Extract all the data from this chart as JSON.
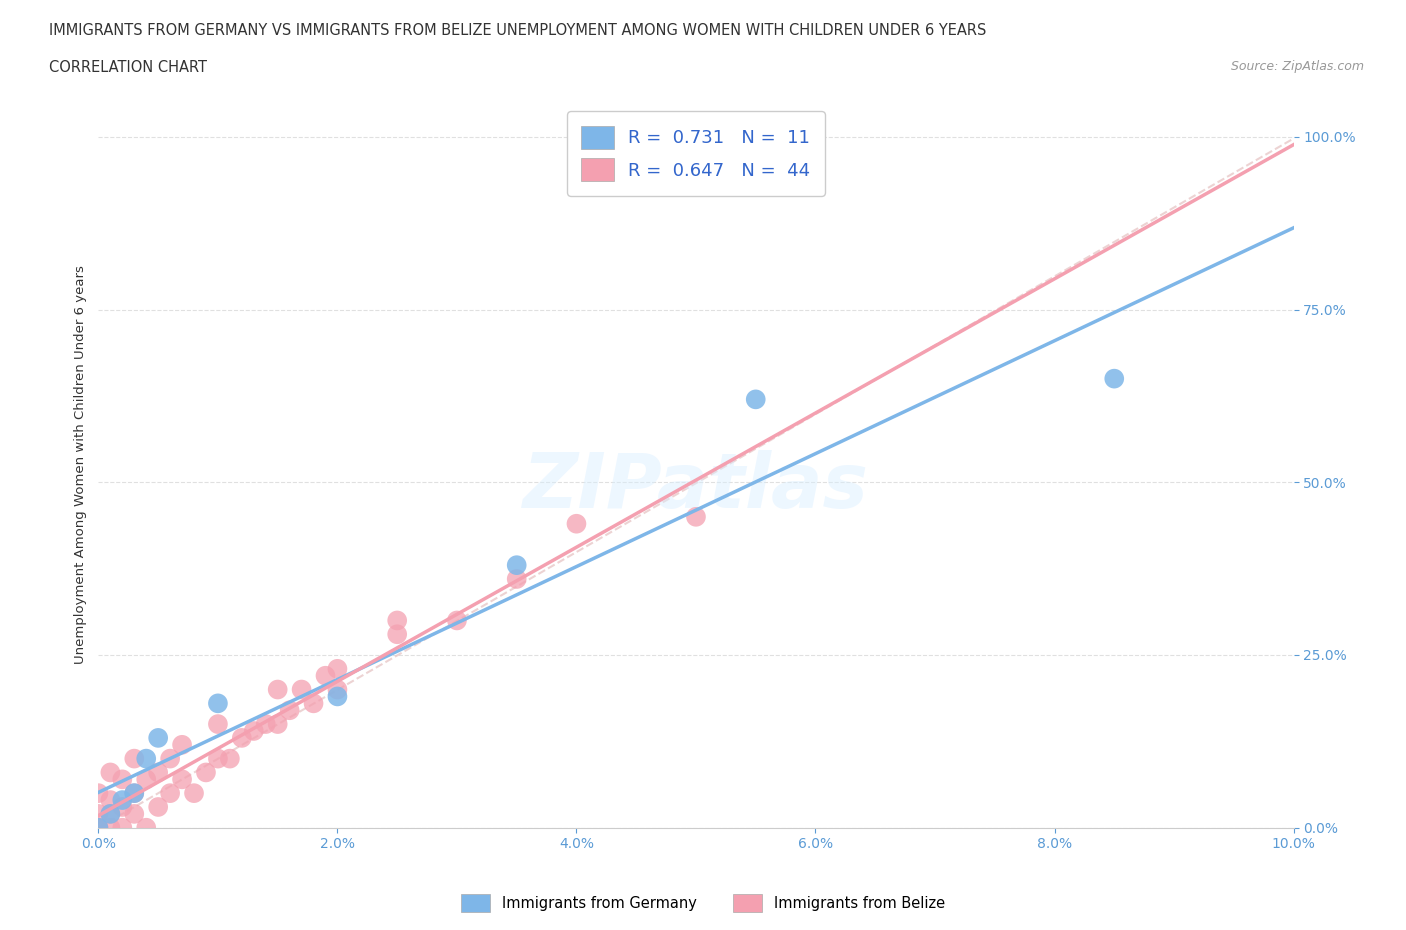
{
  "title_line1": "IMMIGRANTS FROM GERMANY VS IMMIGRANTS FROM BELIZE UNEMPLOYMENT AMONG WOMEN WITH CHILDREN UNDER 6 YEARS",
  "title_line2": "CORRELATION CHART",
  "source": "Source: ZipAtlas.com",
  "ylabel": "Unemployment Among Women with Children Under 6 years",
  "xlim": [
    0.0,
    0.1
  ],
  "ylim": [
    0.0,
    1.05
  ],
  "xticks": [
    0.0,
    0.02,
    0.04,
    0.06,
    0.08,
    0.1
  ],
  "xticklabels": [
    "0.0%",
    "2.0%",
    "4.0%",
    "6.0%",
    "8.0%",
    "10.0%"
  ],
  "ytick_positions": [
    0.0,
    0.25,
    0.5,
    0.75,
    1.0
  ],
  "yticklabels": [
    "0.0%",
    "25.0%",
    "50.0%",
    "75.0%",
    "100.0%"
  ],
  "germany_color": "#7EB6E8",
  "belize_color": "#F4A0B0",
  "germany_r": 0.731,
  "germany_n": 11,
  "belize_r": 0.647,
  "belize_n": 44,
  "germany_x": [
    0.0,
    0.001,
    0.002,
    0.003,
    0.004,
    0.005,
    0.01,
    0.02,
    0.035,
    0.055,
    0.085
  ],
  "germany_y": [
    0.0,
    0.02,
    0.04,
    0.05,
    0.1,
    0.13,
    0.18,
    0.19,
    0.38,
    0.62,
    0.65
  ],
  "belize_x": [
    0.0,
    0.0,
    0.0,
    0.0,
    0.001,
    0.001,
    0.001,
    0.001,
    0.002,
    0.002,
    0.002,
    0.003,
    0.003,
    0.003,
    0.004,
    0.004,
    0.005,
    0.005,
    0.006,
    0.006,
    0.007,
    0.007,
    0.008,
    0.009,
    0.01,
    0.01,
    0.011,
    0.012,
    0.013,
    0.014,
    0.015,
    0.015,
    0.016,
    0.017,
    0.018,
    0.019,
    0.02,
    0.02,
    0.025,
    0.025,
    0.03,
    0.035,
    0.04,
    0.05
  ],
  "belize_y": [
    0.0,
    0.0,
    0.02,
    0.05,
    0.0,
    0.02,
    0.04,
    0.08,
    0.0,
    0.03,
    0.07,
    0.02,
    0.05,
    0.1,
    0.0,
    0.07,
    0.03,
    0.08,
    0.05,
    0.1,
    0.07,
    0.12,
    0.05,
    0.08,
    0.1,
    0.15,
    0.1,
    0.13,
    0.14,
    0.15,
    0.15,
    0.2,
    0.17,
    0.2,
    0.18,
    0.22,
    0.2,
    0.23,
    0.28,
    0.3,
    0.3,
    0.36,
    0.44,
    0.45
  ],
  "watermark": "ZIPatlas",
  "legend_r_label1": "R =  0.731   N =  11",
  "legend_r_label2": "R =  0.647   N =  44",
  "legend_label1": "Immigrants from Germany",
  "legend_label2": "Immigrants from Belize",
  "title_color": "#333333",
  "axis_label_color": "#333333",
  "tick_color": "#5B9BD5",
  "grid_color": "#E0E0E0",
  "background_color": "#FFFFFF",
  "diag_color": "#E8C8C8"
}
